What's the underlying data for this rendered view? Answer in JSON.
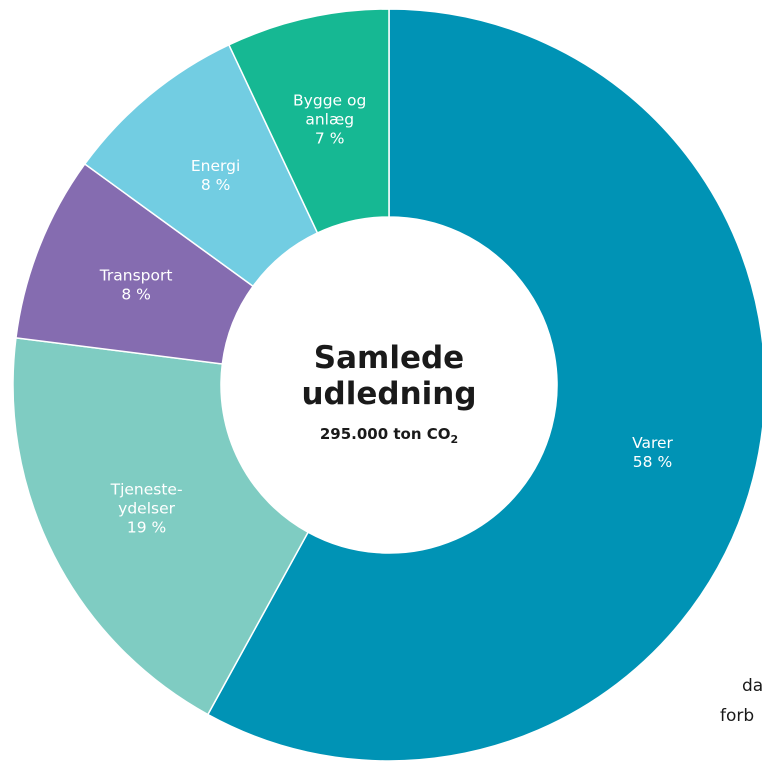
{
  "chart_data": {
    "type": "pie",
    "donut": true,
    "center": {
      "title_lines": [
        "Samlede",
        "udledning"
      ],
      "subtitle_prefix": "295.000 ton CO",
      "subtitle_subscript": "2"
    },
    "slices": [
      {
        "label_lines": [
          "Varer"
        ],
        "value_label": "58 %",
        "value": 58,
        "color": "#0093b5"
      },
      {
        "label_lines": [
          "Tjeneste-",
          "ydelser"
        ],
        "value_label": "19 %",
        "value": 19,
        "color": "#7fccc2"
      },
      {
        "label_lines": [
          "Transport"
        ],
        "value_label": "8 %",
        "value": 8,
        "color": "#856cb0"
      },
      {
        "label_lines": [
          "Energi"
        ],
        "value_label": "8 %",
        "value": 8,
        "color": "#72cde2"
      },
      {
        "label_lines": [
          "Bygge og",
          "anlæg"
        ],
        "value_label": "7 %",
        "value": 7,
        "color": "#16b893"
      }
    ]
  },
  "overflow_text": {
    "line1": "da",
    "line2": "forb"
  }
}
